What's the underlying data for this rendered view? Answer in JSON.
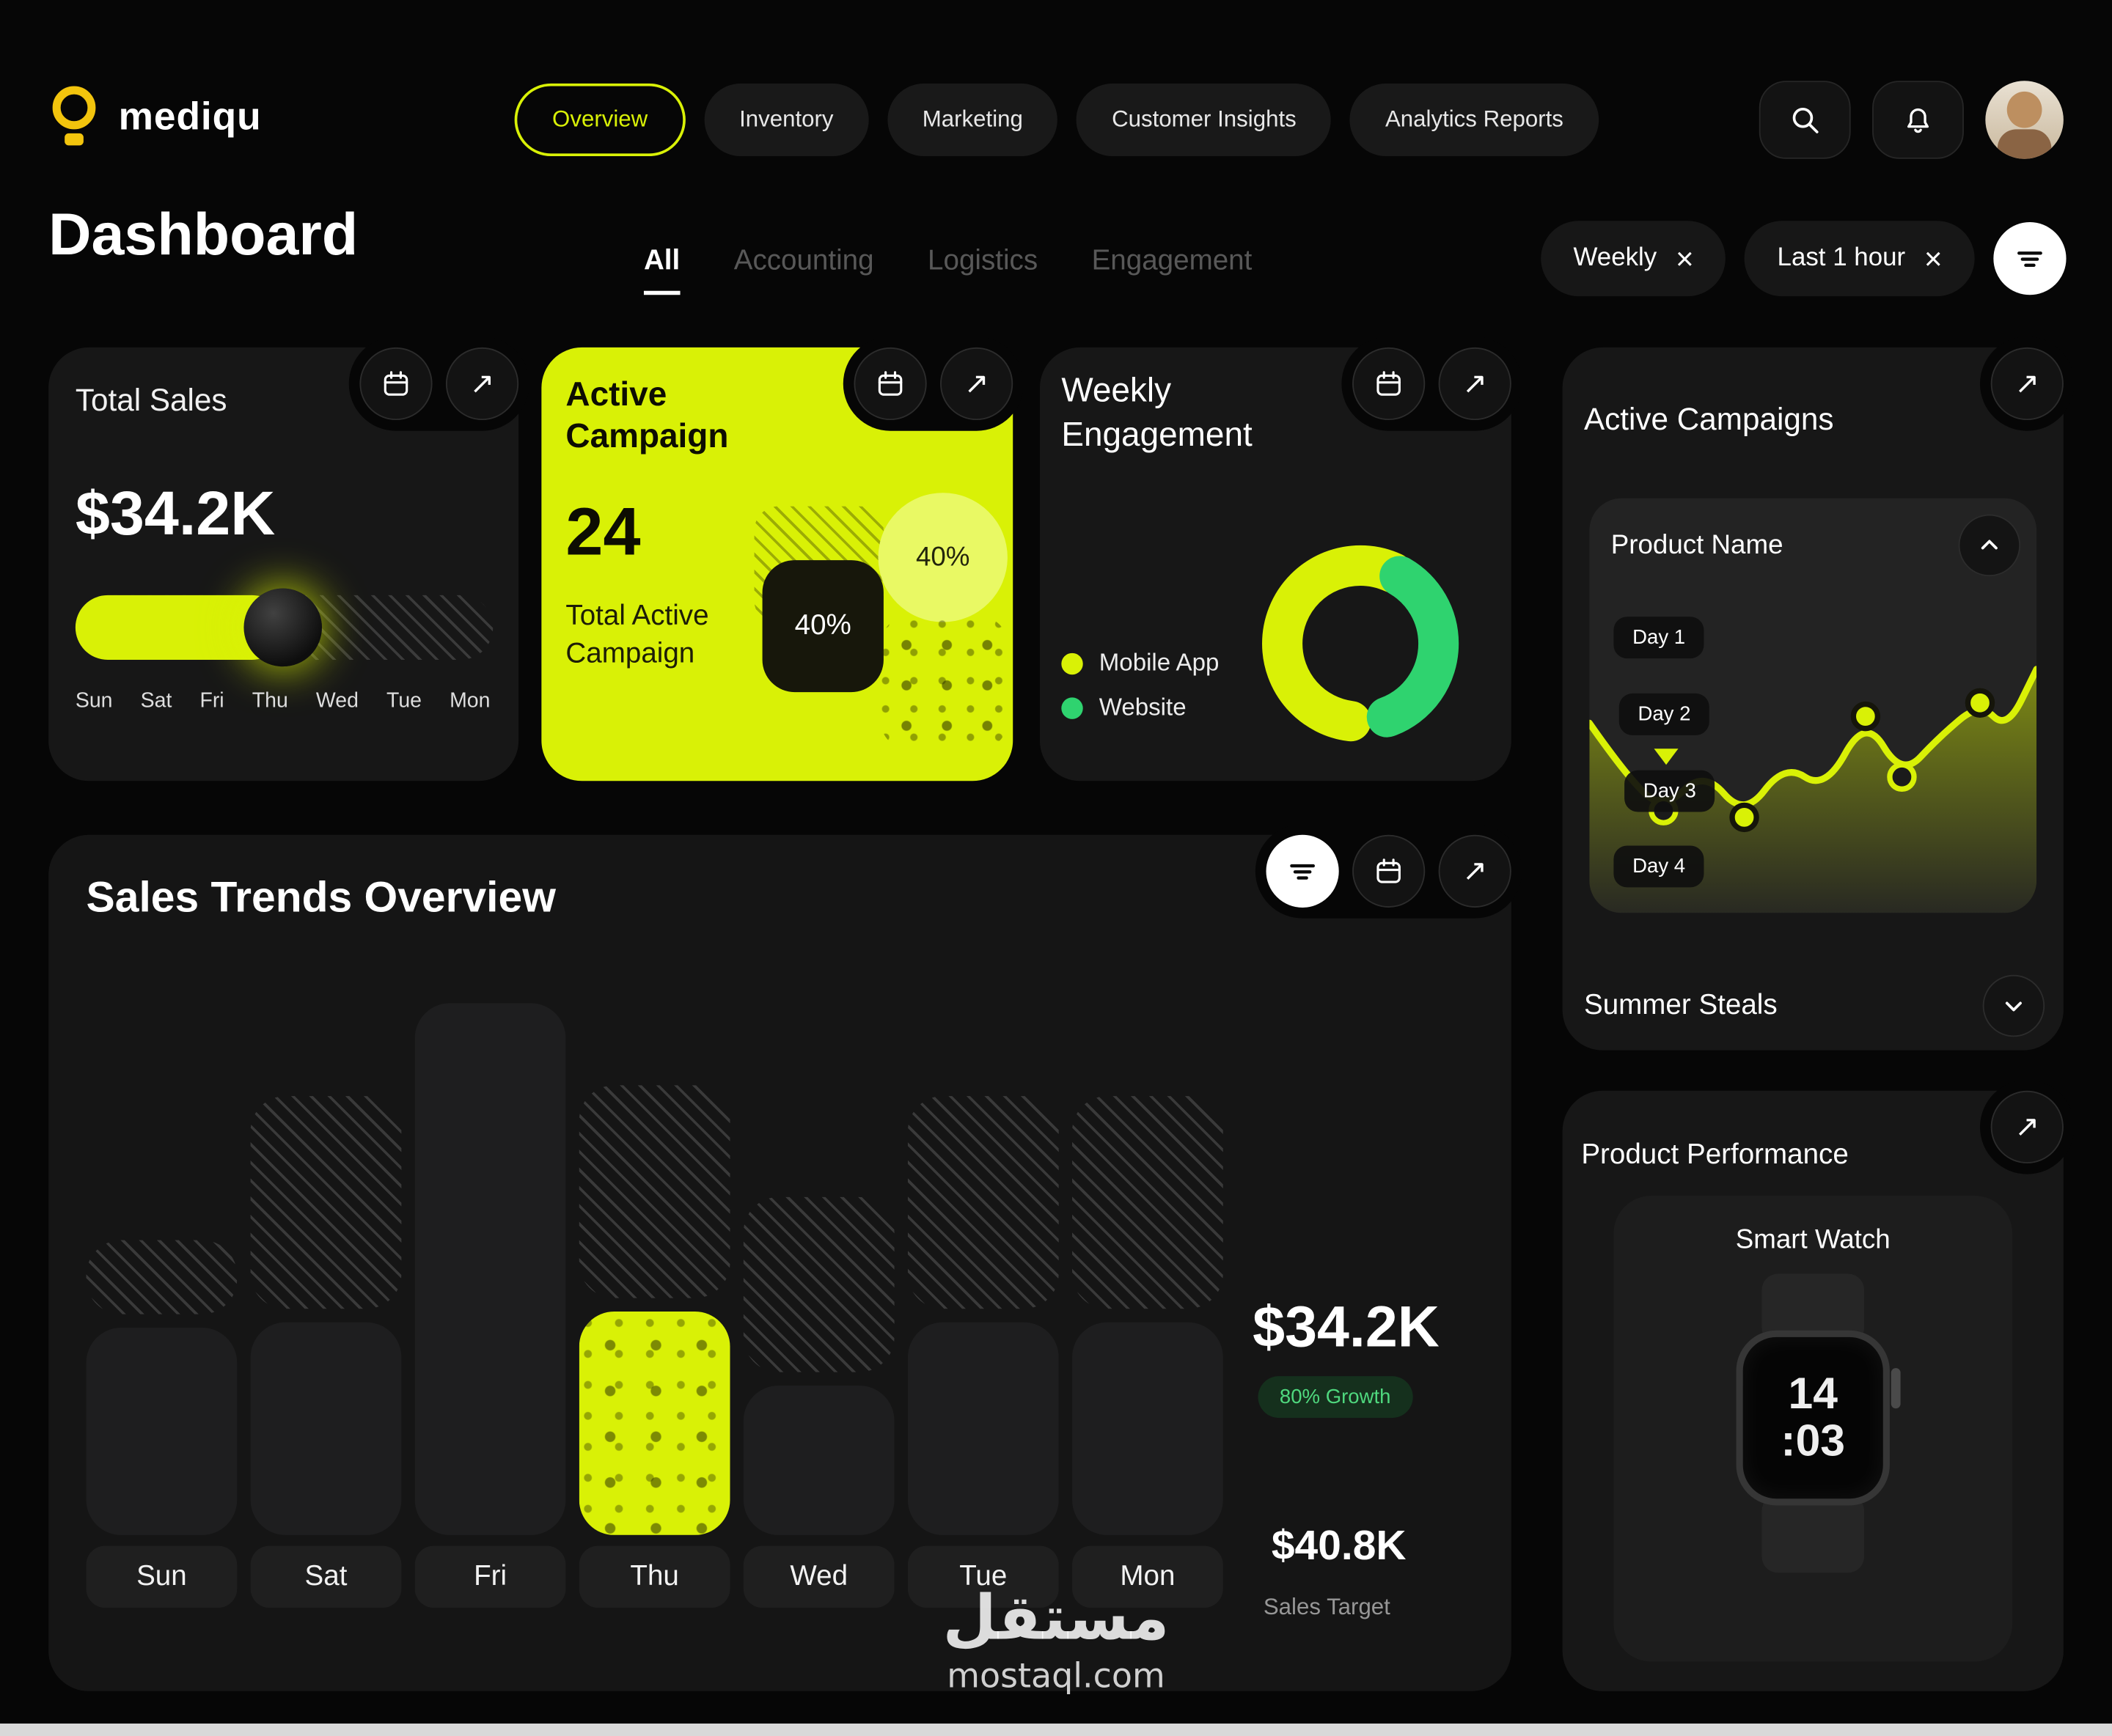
{
  "colors": {
    "accent": "#d9f106",
    "green": "#2fd36f",
    "background": "#060606",
    "card": "#171717"
  },
  "icons": {
    "expand_arrow": "↗",
    "close": "×"
  },
  "brand": {
    "name": "mediqu"
  },
  "topbar": {
    "nav": [
      {
        "label": "Overview",
        "active": true
      },
      {
        "label": "Inventory",
        "active": false
      },
      {
        "label": "Marketing",
        "active": false
      },
      {
        "label": "Customer Insights",
        "active": false
      },
      {
        "label": "Analytics Reports",
        "active": false
      }
    ]
  },
  "header": {
    "title": "Dashboard",
    "tabs": [
      {
        "label": "All",
        "active": true
      },
      {
        "label": "Accounting",
        "active": false
      },
      {
        "label": "Logistics",
        "active": false
      },
      {
        "label": "Engagement",
        "active": false
      }
    ],
    "filter_chips": [
      {
        "label": "Weekly"
      },
      {
        "label": "Last 1 hour"
      }
    ]
  },
  "total_sales": {
    "title": "Total Sales",
    "value": "$34.2K",
    "days": [
      "Sun",
      "Sat",
      "Fri",
      "Thu",
      "Wed",
      "Tue",
      "Mon"
    ]
  },
  "active_campaign": {
    "title": "Active Campaign",
    "count": "24",
    "subtitle": "Total Active Campaign",
    "square_badge": "40%",
    "circle_badge": "40%"
  },
  "weekly_engagement": {
    "title": "Weekly Engagement",
    "legend": [
      {
        "label": "Mobile App",
        "color": "#d9f106"
      },
      {
        "label": "Website",
        "color": "#2fd36f"
      }
    ]
  },
  "active_campaigns": {
    "title": "Active Campaigns",
    "product_name": "Product Name",
    "days": [
      "Day 1",
      "Day 2",
      "Day 3",
      "Day 4"
    ],
    "collapsed_item": "Summer Steals"
  },
  "sales_trends": {
    "title": "Sales Trends Overview",
    "stat_value": "$34.2K",
    "growth_badge": "80% Growth",
    "target_value": "$40.8K",
    "target_label": "Sales Target"
  },
  "product_performance": {
    "title": "Product Performance",
    "product": "Smart Watch",
    "watch_time": [
      "14",
      ":03"
    ]
  },
  "watermark": {
    "line1": "مستقل",
    "line2": "mostaql.com"
  },
  "chart_data": [
    {
      "name": "total_sales_progress",
      "type": "bar",
      "title": "Total Sales",
      "value_label": "$34.2K",
      "progress_pct": 50,
      "categories": [
        "Sun",
        "Sat",
        "Fri",
        "Thu",
        "Wed",
        "Tue",
        "Mon"
      ]
    },
    {
      "name": "weekly_engagement_donut",
      "type": "pie",
      "title": "Weekly Engagement",
      "series": [
        {
          "name": "Mobile App",
          "pct": 55,
          "color": "#d9f106"
        },
        {
          "name": "Website",
          "pct": 36,
          "color": "#2fd36f"
        }
      ],
      "legend_position": "left"
    },
    {
      "name": "sales_trends",
      "type": "bar",
      "title": "Sales Trends Overview",
      "categories": [
        "Sun",
        "Sat",
        "Fri",
        "Thu",
        "Wed",
        "Tue",
        "Mon"
      ],
      "series": [
        {
          "name": "solid",
          "values": [
            39,
            40,
            100,
            42,
            28,
            40,
            40
          ]
        },
        {
          "name": "hatched",
          "values": [
            14,
            40,
            0,
            40,
            33,
            40,
            40
          ]
        }
      ],
      "highlight_category": "Thu",
      "ylim": [
        0,
        100
      ],
      "annotations": {
        "value": "$34.2K",
        "growth": "80% Growth",
        "target": "$40.8K",
        "target_label": "Sales Target"
      }
    },
    {
      "name": "campaign_trend_line",
      "type": "line",
      "title": "Active Campaigns",
      "x_labels": [
        "Day 1",
        "Day 2",
        "Day 3",
        "Day 4"
      ],
      "points": [
        [
          0,
          59
        ],
        [
          28,
          99
        ],
        [
          55,
          124
        ],
        [
          85,
          94
        ],
        [
          115,
          129
        ],
        [
          145,
          89
        ],
        [
          175,
          109
        ],
        [
          205,
          54
        ],
        [
          232,
          99
        ],
        [
          260,
          69
        ],
        [
          290,
          44
        ],
        [
          310,
          64
        ],
        [
          332,
          19
        ]
      ],
      "markers": [
        {
          "x": 55,
          "y": 124,
          "filled": false
        },
        {
          "x": 115,
          "y": 129,
          "filled": true
        },
        {
          "x": 205,
          "y": 54,
          "filled": true
        },
        {
          "x": 232,
          "y": 99,
          "filled": false
        },
        {
          "x": 290,
          "y": 44,
          "filled": true
        }
      ]
    }
  ]
}
